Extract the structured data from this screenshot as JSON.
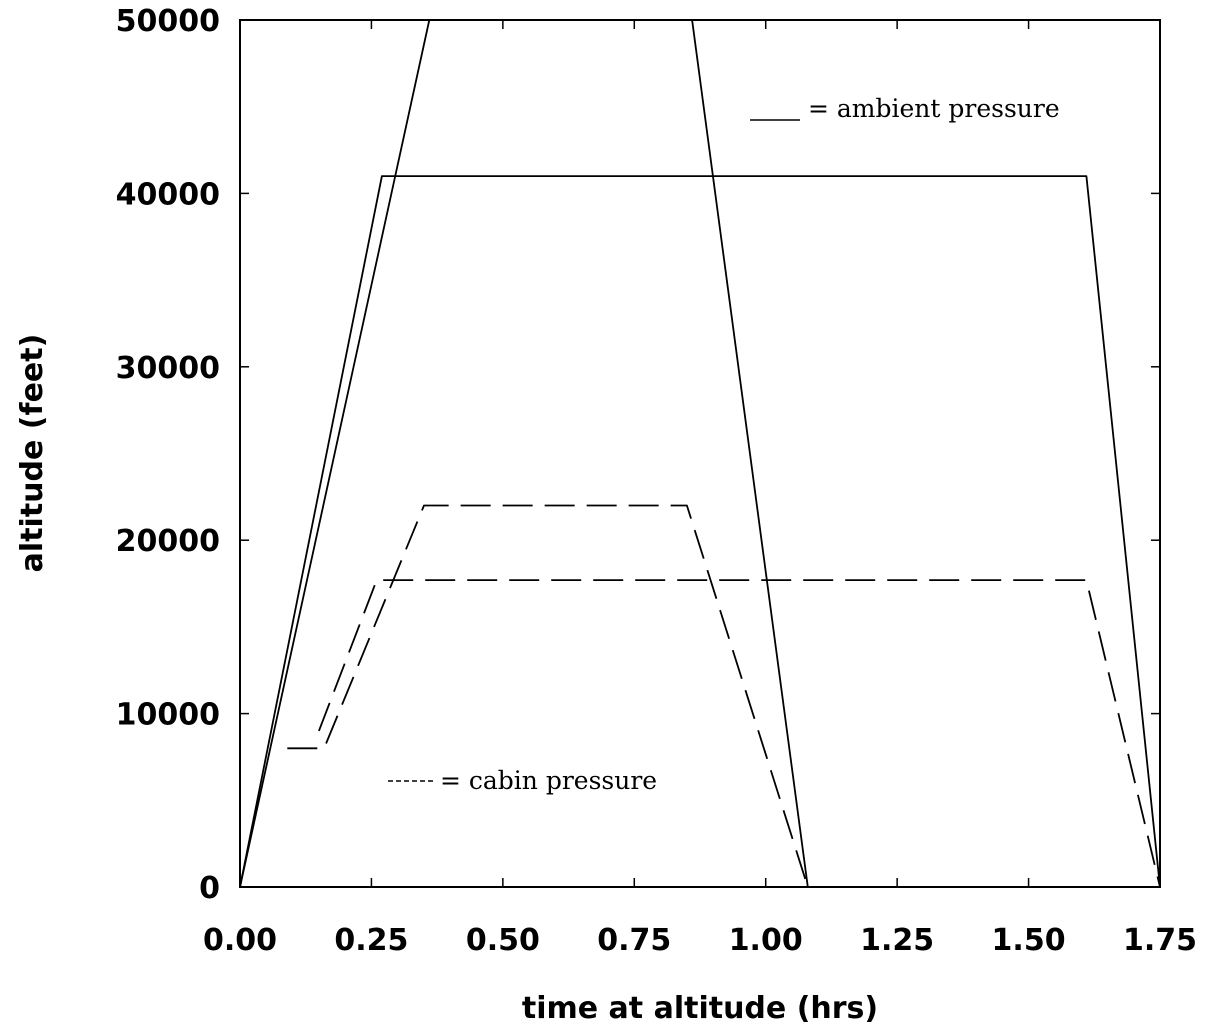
{
  "chart_data": {
    "type": "line",
    "title": "",
    "xlabel": "time at altitude (hrs)",
    "ylabel": "altitude (feet)",
    "xlim": [
      0,
      1.75
    ],
    "ylim": [
      0,
      50000
    ],
    "x_ticks": [
      "0.00",
      "0.25",
      "0.50",
      "0.75",
      "1.00",
      "1.25",
      "1.50",
      "1.75"
    ],
    "y_ticks": [
      "0",
      "10000",
      "20000",
      "30000",
      "40000",
      "50000"
    ],
    "grid": false,
    "legend": [
      {
        "label": "= ambient pressure",
        "style": "solid",
        "placement": "upper-right"
      },
      {
        "label": "= cabin pressure",
        "style": "dashed",
        "placement": "lower-left"
      }
    ],
    "series": [
      {
        "style": "solid",
        "x": [
          0,
          0.36,
          0.86,
          1.08
        ],
        "y": [
          0,
          50000,
          50000,
          0
        ]
      },
      {
        "style": "solid",
        "x": [
          0,
          0.27,
          1.61,
          1.75
        ],
        "y": [
          0,
          41000,
          41000,
          0
        ]
      },
      {
        "style": "dashed",
        "x": [
          0.09,
          0.16,
          0.35,
          0.85,
          1.08
        ],
        "y": [
          8000,
          8000,
          22000,
          22000,
          0
        ]
      },
      {
        "style": "dashed",
        "x": [
          0.15,
          0.26,
          1.61,
          1.75
        ],
        "y": [
          9000,
          17700,
          17700,
          0
        ]
      }
    ]
  }
}
